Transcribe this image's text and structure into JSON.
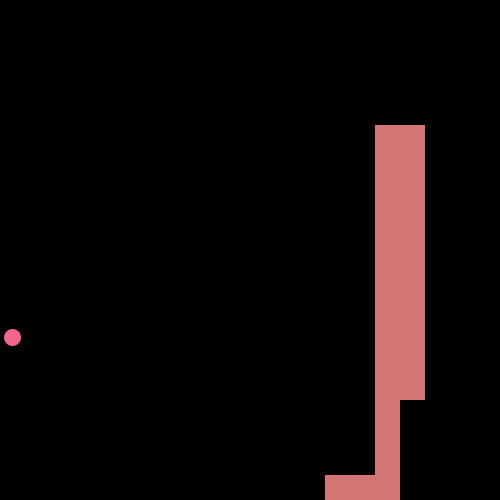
{
  "game": {
    "type": "snake",
    "grid": {
      "columns": 20,
      "rows": 20
    },
    "colors": {
      "background": "#000000",
      "snake": "#d47575",
      "food": "#f2668b"
    },
    "snake": {
      "cells": [
        [
          13,
          19
        ],
        [
          14,
          19
        ],
        [
          15,
          19
        ],
        [
          15,
          18
        ],
        [
          15,
          17
        ],
        [
          15,
          16
        ],
        [
          15,
          15
        ],
        [
          16,
          15
        ],
        [
          16,
          14
        ],
        [
          15,
          14
        ],
        [
          15,
          13
        ],
        [
          16,
          13
        ],
        [
          16,
          12
        ],
        [
          15,
          12
        ],
        [
          15,
          11
        ],
        [
          16,
          11
        ],
        [
          16,
          10
        ],
        [
          15,
          10
        ],
        [
          15,
          9
        ],
        [
          16,
          9
        ],
        [
          16,
          8
        ],
        [
          15,
          8
        ],
        [
          15,
          7
        ],
        [
          16,
          7
        ],
        [
          16,
          6
        ],
        [
          15,
          6
        ],
        [
          15,
          5
        ],
        [
          16,
          5
        ]
      ]
    },
    "food": {
      "cell": [
        0,
        13
      ]
    }
  }
}
